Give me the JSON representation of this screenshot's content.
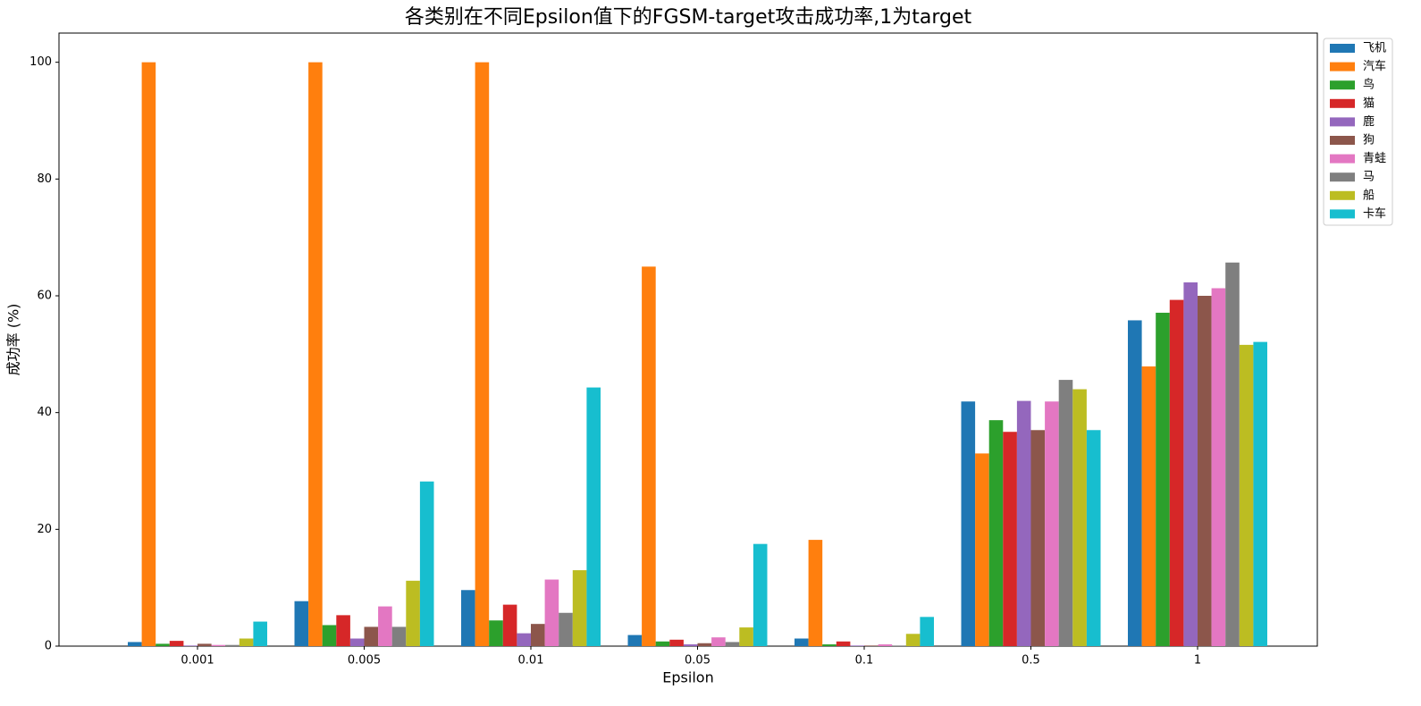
{
  "chart_data": {
    "type": "bar",
    "title": "各类别在不同Epsilon值下的FGSM-target攻击成功率,1为target",
    "x_label": "Epsilon",
    "y_label": "成功率 (%)",
    "categories": [
      "0.001",
      "0.005",
      "0.01",
      "0.05",
      "0.1",
      "0.5",
      "1"
    ],
    "series": [
      {
        "name": "飞机",
        "color": "#1f77b4",
        "values": [
          0.7,
          7.7,
          9.6,
          1.9,
          1.3,
          41.9,
          55.8
        ]
      },
      {
        "name": "汽车",
        "color": "#ff7f0e",
        "values": [
          100,
          100,
          100,
          65.0,
          18.2,
          33.0,
          47.9
        ]
      },
      {
        "name": "鸟",
        "color": "#2ca02c",
        "values": [
          0.4,
          3.6,
          4.4,
          0.8,
          0.3,
          38.7,
          57.1
        ]
      },
      {
        "name": "猫",
        "color": "#d62728",
        "values": [
          0.9,
          5.3,
          7.1,
          1.1,
          0.8,
          36.7,
          59.3
        ]
      },
      {
        "name": "鹿",
        "color": "#9467bd",
        "values": [
          0.1,
          1.3,
          2.2,
          0.3,
          0.1,
          42.0,
          62.3
        ]
      },
      {
        "name": "狗",
        "color": "#8c564b",
        "values": [
          0.4,
          3.3,
          3.8,
          0.5,
          0.1,
          37.0,
          60.0
        ]
      },
      {
        "name": "青蛙",
        "color": "#e377c2",
        "values": [
          0.2,
          6.8,
          11.4,
          1.5,
          0.3,
          41.9,
          61.3
        ]
      },
      {
        "name": "马",
        "color": "#7f7f7f",
        "values": [
          0.2,
          3.3,
          5.7,
          0.7,
          0.1,
          45.6,
          65.7
        ]
      },
      {
        "name": "船",
        "color": "#bcbd22",
        "values": [
          1.3,
          11.2,
          13.0,
          3.2,
          2.1,
          44.0,
          51.6
        ]
      },
      {
        "name": "卡车",
        "color": "#17becf",
        "values": [
          4.2,
          28.2,
          44.3,
          17.5,
          5.0,
          37.0,
          52.1
        ]
      }
    ],
    "ylim": [
      0,
      105
    ],
    "yticks": [
      0,
      20,
      40,
      60,
      80,
      100
    ],
    "legend": "upper-right-outside",
    "grid": false
  }
}
